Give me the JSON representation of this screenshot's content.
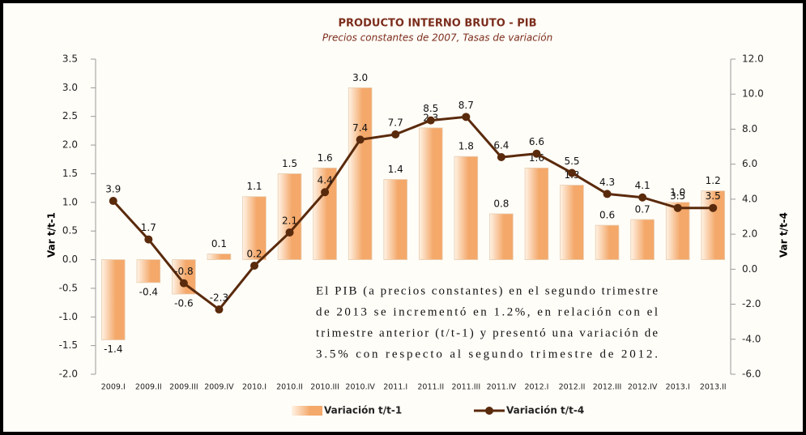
{
  "chart_data": {
    "type": "bar_line",
    "title": "PRODUCTO INTERNO BRUTO - PIB",
    "subtitle": "Precios constantes de 2007, Tasas de variación",
    "ylabel": "Var t/t-1",
    "y2label": "Var t/t-4",
    "categories": [
      "2009.I",
      "2009.II",
      "2009.III",
      "2009.IV",
      "2010.I",
      "2010.II",
      "2010.III",
      "2010.IV",
      "2011.I",
      "2011.II",
      "2011.III",
      "2011.IV",
      "2012.I",
      "2012.II",
      "2012.III",
      "2012.IV",
      "2013.I",
      "2013.II"
    ],
    "series": [
      {
        "name": "Variación t/t-1",
        "type": "bar",
        "color": "#f4a86a",
        "values": [
          -1.4,
          -0.4,
          -0.6,
          0.1,
          1.1,
          1.5,
          1.6,
          3.0,
          1.4,
          2.3,
          1.8,
          0.8,
          1.6,
          1.3,
          0.6,
          0.7,
          1.0,
          1.2
        ],
        "value_labels": [
          "-1.4",
          "-0.4",
          "-0.6",
          "0.1",
          "1.1",
          "1.5",
          "1.6",
          "3.0",
          "1.4",
          "2.3",
          "1.8",
          "0.8",
          "1.6",
          "1.3",
          "0.6",
          "0.7",
          "1.0",
          "1.2"
        ]
      },
      {
        "name": "Variación t/t-4",
        "type": "line",
        "axis": "y2",
        "color": "#5a2a0c",
        "values": [
          3.9,
          1.7,
          -0.8,
          -2.3,
          0.2,
          2.1,
          4.4,
          7.4,
          7.7,
          8.5,
          8.7,
          6.4,
          6.6,
          5.5,
          4.3,
          4.1,
          3.5,
          3.5
        ]
      }
    ],
    "ylim": [
      -2,
      3.5
    ],
    "yticks": [
      {
        "value": -2,
        "label": "-2.0"
      },
      -1.5,
      {
        "value": -1,
        "label": "-1.0"
      },
      -0.5,
      {
        "value": 0,
        "label": "0.0"
      },
      0.5,
      {
        "value": 1,
        "label": "1.0"
      },
      1.5,
      {
        "value": 2,
        "label": "2.0"
      },
      2.5,
      {
        "value": 3,
        "label": "3.0"
      },
      3.5
    ],
    "y2lim": [
      -6,
      12
    ],
    "y2ticks": [
      {
        "value": -6,
        "label": "-6.0"
      },
      {
        "value": -4,
        "label": "-4.0"
      },
      {
        "value": -2,
        "label": "-2.0"
      },
      {
        "value": 0,
        "label": "0.0"
      },
      {
        "value": 2,
        "label": "2.0"
      },
      {
        "value": 4,
        "label": "4.0"
      },
      {
        "value": 6,
        "label": "6.0"
      },
      {
        "value": 8,
        "label": "8.0"
      },
      {
        "value": 10,
        "label": "10.0"
      },
      {
        "value": 12,
        "label": "12.0"
      }
    ],
    "annotation": [
      "El PIB (a precios constantes) en el segundo trimestre",
      "de 2013 se incrementó en 1.2%, en relación con el",
      "trimestre anterior (t/t-1) y presentó una variación de",
      "3.5% con respecto al segundo trimestre de 2012."
    ],
    "legend": "bottom"
  }
}
